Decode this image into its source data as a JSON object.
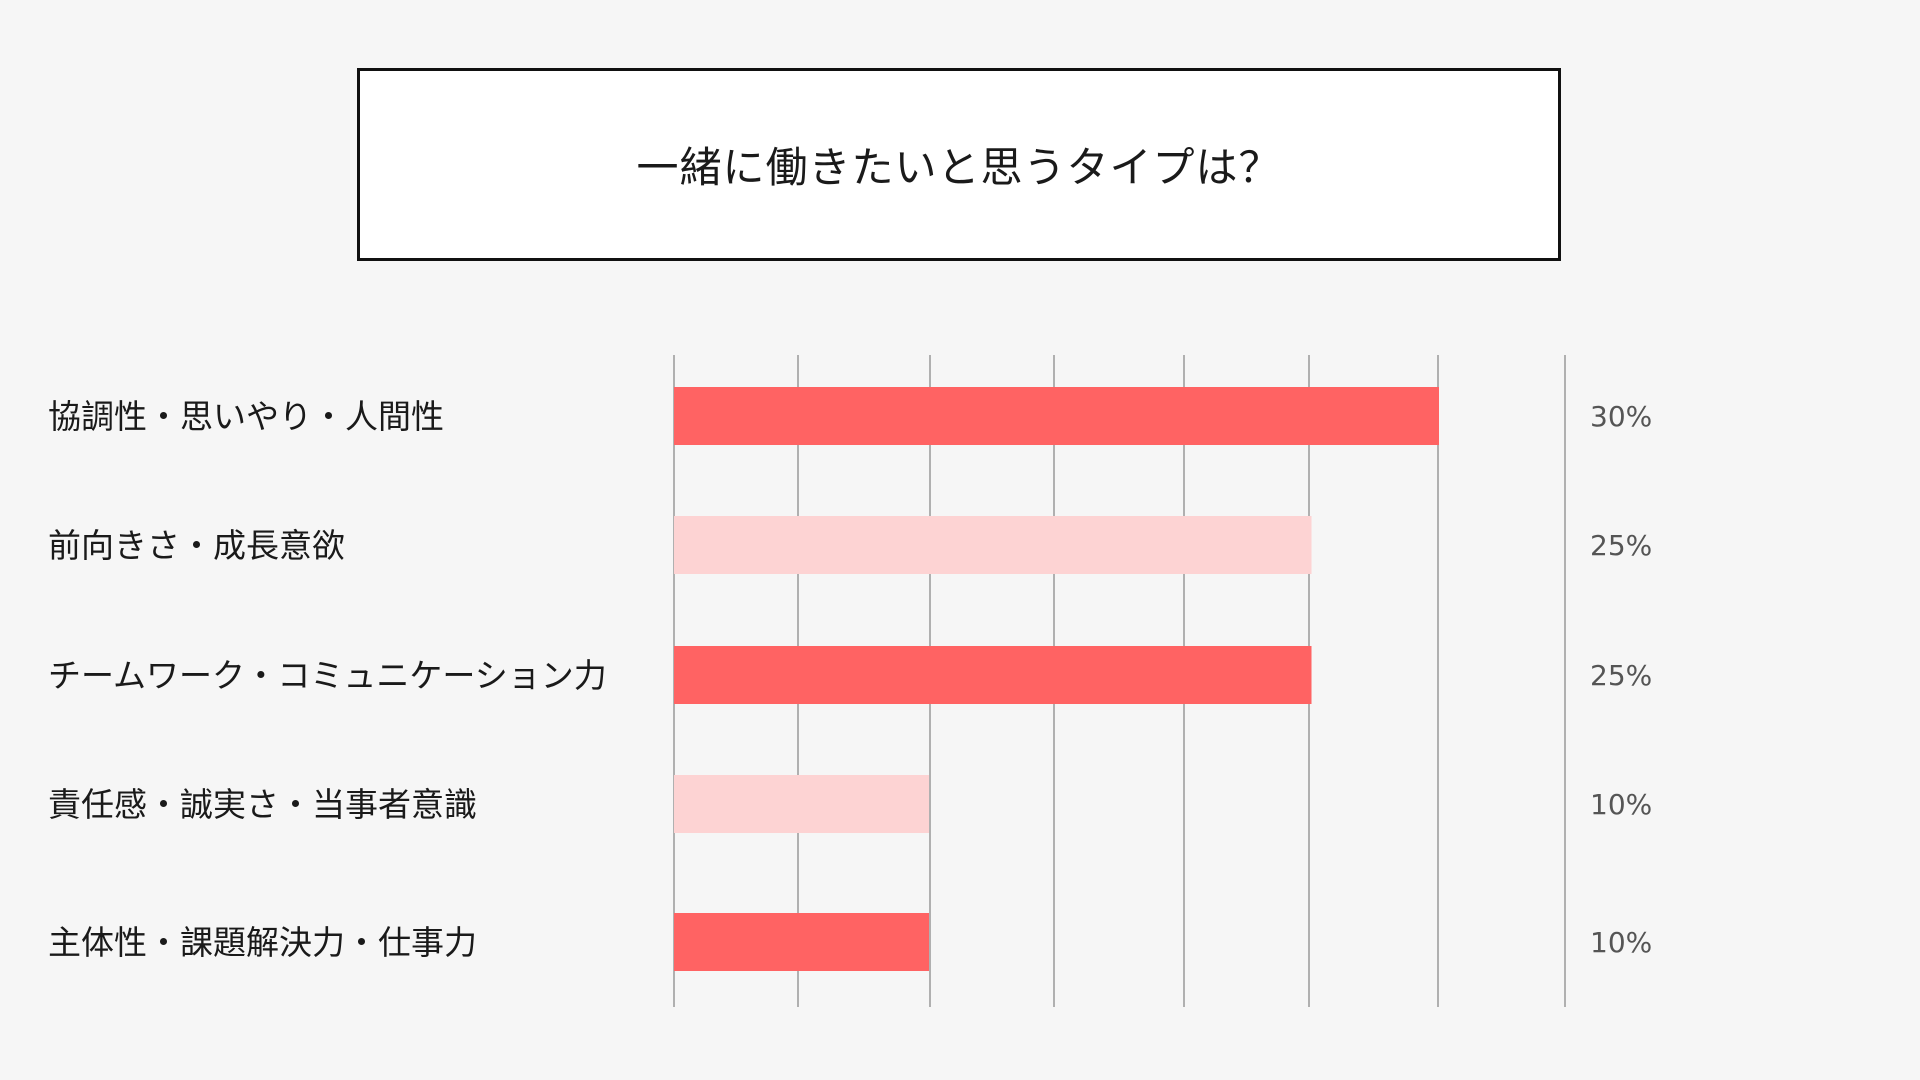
{
  "chart_data": {
    "type": "bar",
    "orientation": "horizontal",
    "title": "一緒に働きたいと思うタイプは？",
    "categories": [
      "協調性・思いやり・人間性",
      "前向きさ・成長意欲",
      "チームワーク・コミュニケーション力",
      "責任感・誠実さ・当事者意識",
      "主体性・課題解決力・仕事力"
    ],
    "values": [
      30,
      25,
      25,
      10,
      10
    ],
    "value_labels": [
      "30%",
      "25%",
      "25%",
      "10%",
      "10%"
    ],
    "xlim": [
      0,
      35
    ],
    "grid": true,
    "bar_colors": [
      "#ff6363",
      "#fdd3d3",
      "#ff6363",
      "#fdd3d3",
      "#ff6363"
    ]
  }
}
